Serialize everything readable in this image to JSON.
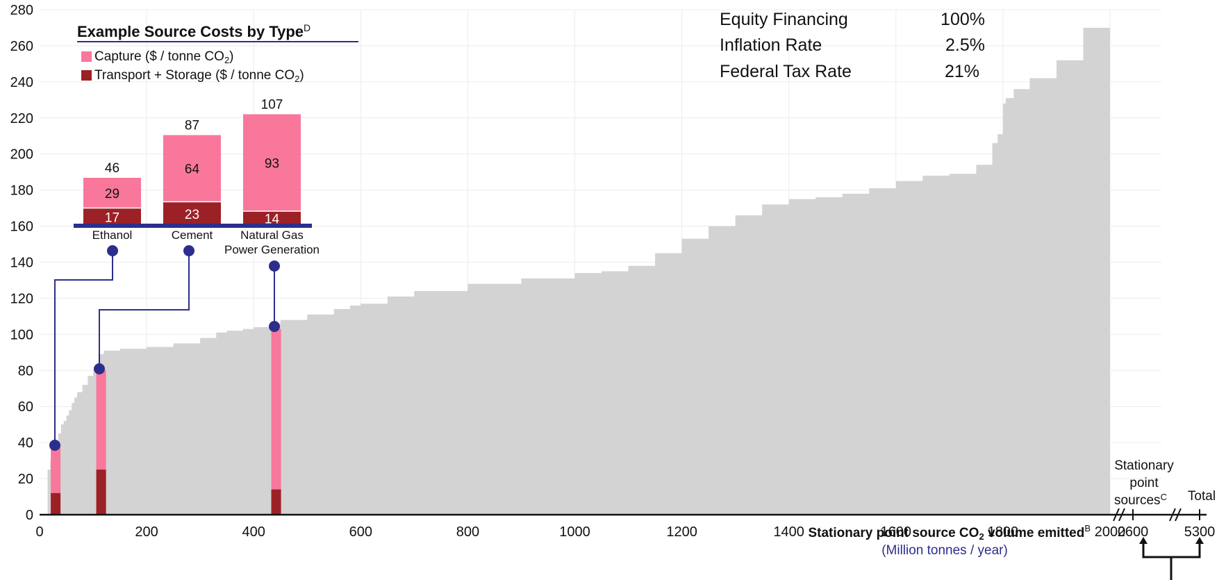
{
  "chart_data": {
    "type": "bar",
    "ylim": [
      0,
      280
    ],
    "yticks": [
      0,
      20,
      40,
      60,
      80,
      100,
      120,
      140,
      160,
      180,
      200,
      220,
      240,
      260,
      280
    ],
    "xlim": [
      0,
      2000
    ],
    "xticks": [
      0,
      200,
      400,
      600,
      800,
      1000,
      1200,
      1400,
      1600,
      1800,
      2000
    ],
    "xlabel": "Stationary point source CO",
    "xlabel_sub": "2",
    "xlabel_tail": " volume emitted",
    "xlabel_sup": "B",
    "xunits": "(Million tonnes / year)",
    "grid": true,
    "supply_curve": {
      "description_points_x": [
        15,
        20,
        25,
        30,
        35,
        40,
        45,
        50,
        55,
        60,
        65,
        70,
        80,
        90,
        100,
        110,
        120,
        150,
        200,
        250,
        300,
        330,
        350,
        380,
        400,
        430,
        450,
        500,
        550,
        580,
        600,
        650,
        700,
        800,
        900,
        1000,
        1050,
        1100,
        1150,
        1200,
        1250,
        1300,
        1350,
        1400,
        1450,
        1500,
        1550,
        1600,
        1650,
        1700,
        1750,
        1780,
        1790,
        1800,
        1805,
        1820,
        1850,
        1900,
        1950,
        2000
      ],
      "description_points_y": [
        25,
        30,
        35,
        40,
        45,
        50,
        52,
        55,
        58,
        62,
        65,
        68,
        72,
        77,
        80,
        89,
        91,
        92,
        93,
        95,
        98,
        101,
        102,
        103,
        104,
        106,
        108,
        111,
        114,
        116,
        117,
        121,
        124,
        128,
        131,
        134,
        135,
        138,
        145,
        153,
        160,
        166,
        172,
        175,
        176,
        178,
        181,
        185,
        188,
        189,
        194,
        206,
        211,
        228,
        231,
        236,
        242,
        252,
        270,
        283
      ]
    },
    "highlight_bars": [
      {
        "x": 30,
        "capture_top": 38,
        "transport": 12
      },
      {
        "x": 115,
        "capture_top": 80,
        "transport": 25
      },
      {
        "x": 442,
        "capture_top": 103,
        "transport": 14
      }
    ],
    "extended_axis": {
      "ticks": [
        "2600",
        "5300"
      ],
      "annotation_stationary": [
        "Stationary",
        "point",
        "sources"
      ],
      "annotation_stationary_sup": "C",
      "annotation_total": "Total"
    },
    "parameters": [
      {
        "label": "Equity Financing",
        "value": "100%"
      },
      {
        "label": "Inflation Rate",
        "value": "2.5%"
      },
      {
        "label": "Federal Tax Rate",
        "value": "21%"
      }
    ],
    "inset": {
      "title": "Example Source Costs by Type",
      "title_sup": "D",
      "legend": [
        {
          "name": "Capture ($ / tonne CO",
          "sub": "2",
          "tail": ")",
          "color": "#f8779b"
        },
        {
          "name": "Transport + Storage ($ / tonne CO",
          "sub": "2",
          "tail": ")",
          "color": "#9c2127"
        }
      ],
      "categories": [
        "Ethanol",
        "Cement",
        "Natural Gas Power Generation"
      ],
      "category_lines": [
        [
          "Ethanol"
        ],
        [
          "Cement"
        ],
        [
          "Natural Gas",
          "Power Generation"
        ]
      ],
      "capture": [
        29,
        64,
        93
      ],
      "transport_storage": [
        17,
        23,
        14
      ],
      "totals": [
        46,
        87,
        107
      ]
    }
  },
  "colors": {
    "curve": "#d3d3d3",
    "capture": "#f8779b",
    "transport": "#9c2127",
    "accent": "#2b2e8c",
    "grid": "#ececec"
  }
}
